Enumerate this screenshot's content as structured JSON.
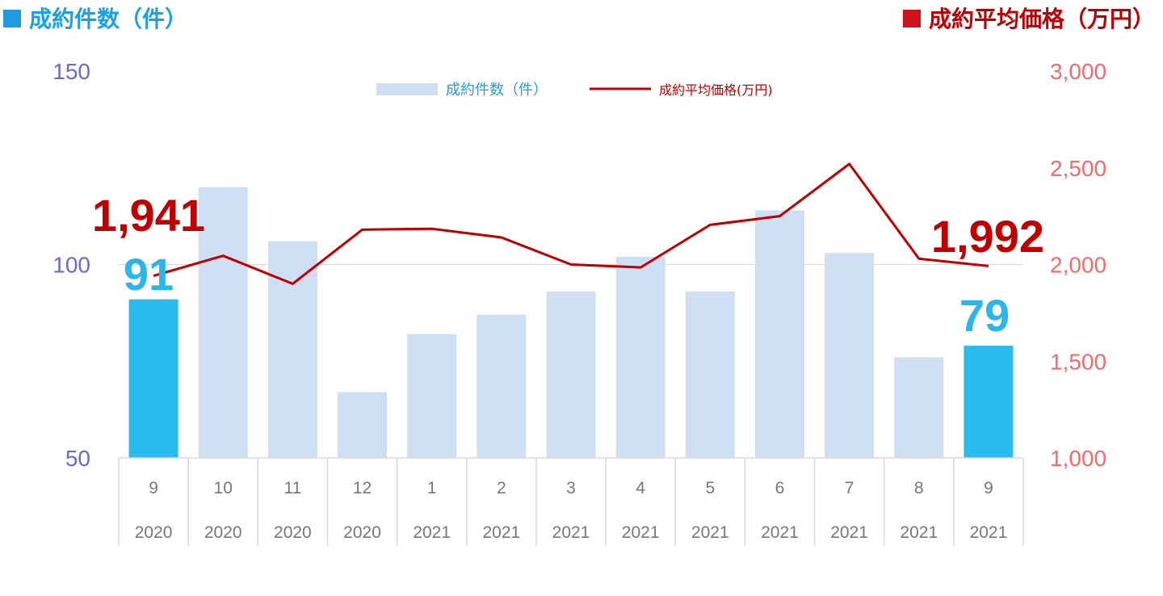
{
  "headers": {
    "left": "成約件数（件）",
    "right": "成約平均価格（万円）"
  },
  "legend": {
    "bar_label": "成約件数（件）",
    "line_label": "成約平均価格(万円)"
  },
  "colors": {
    "left_header": "#1aa0e6",
    "right_header": "#c00000",
    "left_square": "#1e9be0",
    "right_square": "#d0101a",
    "bar_light": "#cfdff3",
    "bar_highlight": "#29bbee",
    "line": "#c00000",
    "left_axis_text": "#6a6ac8",
    "right_axis_text": "#f26b6b",
    "x_text": "#777777",
    "grid": "#d9d9d9",
    "legend_bar_text": "#1aa0e6",
    "legend_line_text": "#c00000",
    "bar_value_label": "#29b6ea",
    "line_value_label": "#c00000"
  },
  "chart_data": {
    "type": "bar",
    "categories": [
      {
        "month": "9",
        "year": "2020"
      },
      {
        "month": "10",
        "year": "2020"
      },
      {
        "month": "11",
        "year": "2020"
      },
      {
        "month": "12",
        "year": "2020"
      },
      {
        "month": "1",
        "year": "2021"
      },
      {
        "month": "2",
        "year": "2021"
      },
      {
        "month": "3",
        "year": "2021"
      },
      {
        "month": "4",
        "year": "2021"
      },
      {
        "month": "5",
        "year": "2021"
      },
      {
        "month": "6",
        "year": "2021"
      },
      {
        "month": "7",
        "year": "2021"
      },
      {
        "month": "8",
        "year": "2021"
      },
      {
        "month": "9",
        "year": "2021"
      }
    ],
    "series": [
      {
        "name": "成約件数（件）",
        "type": "bar",
        "axis": "left",
        "values": [
          91,
          120,
          106,
          67,
          82,
          87,
          93,
          102,
          93,
          114,
          103,
          76,
          79
        ],
        "highlight": [
          true,
          false,
          false,
          false,
          false,
          false,
          false,
          false,
          false,
          false,
          false,
          false,
          true
        ]
      },
      {
        "name": "成約平均価格(万円)",
        "type": "line",
        "axis": "right",
        "values": [
          1941,
          2045,
          1900,
          2180,
          2185,
          2140,
          2000,
          1985,
          2205,
          2250,
          2520,
          2030,
          1992
        ]
      }
    ],
    "left_axis": {
      "ylim": [
        50,
        150
      ],
      "ticks": [
        "50",
        "100",
        "150"
      ]
    },
    "right_axis": {
      "ylim": [
        1000,
        3000
      ],
      "ticks": [
        "1,000",
        "1,500",
        "2,000",
        "2,500",
        "3,000"
      ]
    },
    "annotations": {
      "bar_first": "91",
      "bar_last": "79",
      "line_first": "1,941",
      "line_last": "1,992"
    },
    "grid": "single gridline at 100 / 2,000",
    "legend_position": "top-center"
  }
}
